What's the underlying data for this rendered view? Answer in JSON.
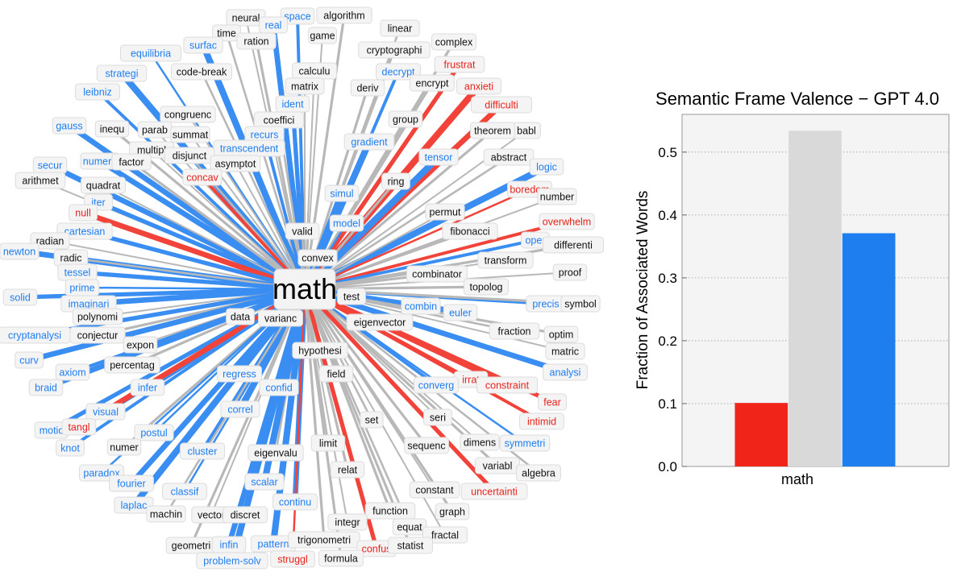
{
  "colors": {
    "negative": "#f02418",
    "neutral": "#b8b8b8",
    "positive": "#1e7ef0"
  },
  "chart_data": [
    {
      "type": "network",
      "hub": "math",
      "nodes": [
        {
          "label": "neural",
          "v": "neutral"
        },
        {
          "label": "space",
          "v": "positive"
        },
        {
          "label": "algorithm",
          "v": "neutral"
        },
        {
          "label": "real",
          "v": "positive"
        },
        {
          "label": "time",
          "v": "neutral"
        },
        {
          "label": "ration",
          "v": "neutral"
        },
        {
          "label": "game",
          "v": "neutral"
        },
        {
          "label": "linear",
          "v": "neutral"
        },
        {
          "label": "complex",
          "v": "neutral"
        },
        {
          "label": "surfac",
          "v": "positive"
        },
        {
          "label": "equilibria",
          "v": "positive"
        },
        {
          "label": "cryptographi",
          "v": "neutral"
        },
        {
          "label": "frustrat",
          "v": "negative"
        },
        {
          "label": "code-break",
          "v": "neutral"
        },
        {
          "label": "strategi",
          "v": "positive"
        },
        {
          "label": "calculu",
          "v": "neutral"
        },
        {
          "label": "decrypt",
          "v": "positive"
        },
        {
          "label": "encrypt",
          "v": "neutral"
        },
        {
          "label": "matrix",
          "v": "neutral"
        },
        {
          "label": "anxieti",
          "v": "negative"
        },
        {
          "label": "deriv",
          "v": "neutral"
        },
        {
          "label": "leibniz",
          "v": "positive"
        },
        {
          "label": "ident",
          "v": "positive"
        },
        {
          "label": "difficulti",
          "v": "negative"
        },
        {
          "label": "congruenc",
          "v": "neutral"
        },
        {
          "label": "coeffici",
          "v": "neutral"
        },
        {
          "label": "group",
          "v": "neutral"
        },
        {
          "label": "babl",
          "v": "neutral"
        },
        {
          "label": "gauss",
          "v": "positive"
        },
        {
          "label": "inequ",
          "v": "neutral"
        },
        {
          "label": "parab",
          "v": "neutral"
        },
        {
          "label": "recurs",
          "v": "positive"
        },
        {
          "label": "theorem",
          "v": "neutral"
        },
        {
          "label": "summat",
          "v": "neutral"
        },
        {
          "label": "gradient",
          "v": "positive"
        },
        {
          "label": "transcendent",
          "v": "positive"
        },
        {
          "label": "multipl",
          "v": "neutral"
        },
        {
          "label": "disjunct",
          "v": "neutral"
        },
        {
          "label": "numera",
          "v": "positive"
        },
        {
          "label": "tensor",
          "v": "positive"
        },
        {
          "label": "abstract",
          "v": "neutral"
        },
        {
          "label": "factor",
          "v": "neutral"
        },
        {
          "label": "asymptot",
          "v": "neutral"
        },
        {
          "label": "secur",
          "v": "positive"
        },
        {
          "label": "logic",
          "v": "positive"
        },
        {
          "label": "arithmet",
          "v": "neutral"
        },
        {
          "label": "concav",
          "v": "negative"
        },
        {
          "label": "ring",
          "v": "neutral"
        },
        {
          "label": "quadrat",
          "v": "neutral"
        },
        {
          "label": "simul",
          "v": "positive"
        },
        {
          "label": "boredom",
          "v": "negative"
        },
        {
          "label": "number",
          "v": "neutral"
        },
        {
          "label": "iter",
          "v": "positive"
        },
        {
          "label": "null",
          "v": "negative"
        },
        {
          "label": "permut",
          "v": "neutral"
        },
        {
          "label": "model",
          "v": "positive"
        },
        {
          "label": "overwhelm",
          "v": "negative"
        },
        {
          "label": "cartesian",
          "v": "positive"
        },
        {
          "label": "valid",
          "v": "neutral"
        },
        {
          "label": "fibonacci",
          "v": "neutral"
        },
        {
          "label": "radian",
          "v": "neutral"
        },
        {
          "label": "oper",
          "v": "positive"
        },
        {
          "label": "differenti",
          "v": "neutral"
        },
        {
          "label": "newton",
          "v": "positive"
        },
        {
          "label": "radic",
          "v": "neutral"
        },
        {
          "label": "convex",
          "v": "neutral"
        },
        {
          "label": "transform",
          "v": "neutral"
        },
        {
          "label": "tessel",
          "v": "positive"
        },
        {
          "label": "combinator",
          "v": "neutral"
        },
        {
          "label": "proof",
          "v": "neutral"
        },
        {
          "label": "prime",
          "v": "positive"
        },
        {
          "label": "topolog",
          "v": "neutral"
        },
        {
          "label": "solid",
          "v": "positive"
        },
        {
          "label": "imaginari",
          "v": "positive"
        },
        {
          "label": "test",
          "v": "neutral"
        },
        {
          "label": "polynomi",
          "v": "neutral"
        },
        {
          "label": "precis",
          "v": "positive"
        },
        {
          "label": "symbol",
          "v": "neutral"
        },
        {
          "label": "combin",
          "v": "positive"
        },
        {
          "label": "euler",
          "v": "positive"
        },
        {
          "label": "data",
          "v": "neutral"
        },
        {
          "label": "varianc",
          "v": "neutral"
        },
        {
          "label": "cryptanalysi",
          "v": "positive"
        },
        {
          "label": "conjectur",
          "v": "neutral"
        },
        {
          "label": "eigenvector",
          "v": "neutral"
        },
        {
          "label": "fraction",
          "v": "neutral"
        },
        {
          "label": "optim",
          "v": "neutral"
        },
        {
          "label": "expon",
          "v": "neutral"
        },
        {
          "label": "curv",
          "v": "positive"
        },
        {
          "label": "hypothesi",
          "v": "neutral"
        },
        {
          "label": "matric",
          "v": "neutral"
        },
        {
          "label": "axiom",
          "v": "positive"
        },
        {
          "label": "percentag",
          "v": "neutral"
        },
        {
          "label": "analysi",
          "v": "positive"
        },
        {
          "label": "field",
          "v": "neutral"
        },
        {
          "label": "regress",
          "v": "positive"
        },
        {
          "label": "irrat",
          "v": "negative"
        },
        {
          "label": "constraint",
          "v": "negative"
        },
        {
          "label": "braid",
          "v": "positive"
        },
        {
          "label": "infer",
          "v": "positive"
        },
        {
          "label": "confid",
          "v": "positive"
        },
        {
          "label": "converg",
          "v": "positive"
        },
        {
          "label": "fear",
          "v": "negative"
        },
        {
          "label": "visual",
          "v": "positive"
        },
        {
          "label": "correl",
          "v": "positive"
        },
        {
          "label": "seri",
          "v": "neutral"
        },
        {
          "label": "intimid",
          "v": "negative"
        },
        {
          "label": "motio",
          "v": "positive"
        },
        {
          "label": "tangl",
          "v": "negative"
        },
        {
          "label": "set",
          "v": "neutral"
        },
        {
          "label": "postul",
          "v": "positive"
        },
        {
          "label": "knot",
          "v": "positive"
        },
        {
          "label": "limit",
          "v": "neutral"
        },
        {
          "label": "sequenc",
          "v": "neutral"
        },
        {
          "label": "dimens",
          "v": "neutral"
        },
        {
          "label": "symmetri",
          "v": "positive"
        },
        {
          "label": "numer",
          "v": "neutral"
        },
        {
          "label": "cluster",
          "v": "positive"
        },
        {
          "label": "eigenvalu",
          "v": "neutral"
        },
        {
          "label": "variabl",
          "v": "neutral"
        },
        {
          "label": "paradox",
          "v": "positive"
        },
        {
          "label": "algebra",
          "v": "neutral"
        },
        {
          "label": "relat",
          "v": "neutral"
        },
        {
          "label": "fourier",
          "v": "positive"
        },
        {
          "label": "scalar",
          "v": "positive"
        },
        {
          "label": "classif",
          "v": "positive"
        },
        {
          "label": "constant",
          "v": "neutral"
        },
        {
          "label": "uncertainti",
          "v": "negative"
        },
        {
          "label": "continu",
          "v": "positive"
        },
        {
          "label": "laplac",
          "v": "positive"
        },
        {
          "label": "machin",
          "v": "neutral"
        },
        {
          "label": "function",
          "v": "neutral"
        },
        {
          "label": "vector",
          "v": "neutral"
        },
        {
          "label": "discret",
          "v": "neutral"
        },
        {
          "label": "graph",
          "v": "neutral"
        },
        {
          "label": "integr",
          "v": "neutral"
        },
        {
          "label": "equat",
          "v": "neutral"
        },
        {
          "label": "geometri",
          "v": "neutral"
        },
        {
          "label": "infin",
          "v": "positive"
        },
        {
          "label": "pattern",
          "v": "positive"
        },
        {
          "label": "trigonometri",
          "v": "neutral"
        },
        {
          "label": "fractal",
          "v": "neutral"
        },
        {
          "label": "confus",
          "v": "negative"
        },
        {
          "label": "statist",
          "v": "neutral"
        },
        {
          "label": "problem-solv",
          "v": "positive"
        },
        {
          "label": "struggl",
          "v": "negative"
        },
        {
          "label": "formula",
          "v": "neutral"
        }
      ]
    },
    {
      "type": "bar",
      "title": "Semantic Frame Valence − GPT 4.0",
      "ylabel": "Fraction of Associated Words",
      "categories": [
        "math"
      ],
      "series": [
        {
          "values": [
            0.101
          ],
          "color": "#f02418"
        },
        {
          "values": [
            0.534
          ],
          "color": "#d9d9d9"
        },
        {
          "values": [
            0.371
          ],
          "color": "#1e7ef0"
        }
      ],
      "ylim": [
        0,
        0.56
      ],
      "yticks": [
        "0.0",
        "0.1",
        "0.2",
        "0.3",
        "0.4",
        "0.5"
      ],
      "grid": true
    }
  ]
}
